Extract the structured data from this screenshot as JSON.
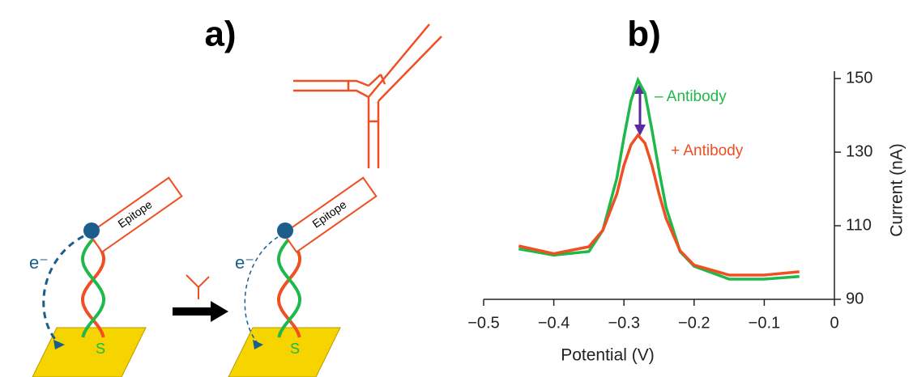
{
  "diagram": {
    "label": "a)",
    "epitope_labels": [
      "Epitope",
      "Epitope"
    ],
    "electron_labels": [
      "e⁻",
      "e⁻"
    ],
    "sulfur_labels": [
      "S",
      "S"
    ]
  },
  "chart_data": {
    "type": "line",
    "title": "b)",
    "x_label": "Potential (V)",
    "y_label": "Current (nA)",
    "x": [
      -0.45,
      -0.4,
      -0.35,
      -0.33,
      -0.31,
      -0.3,
      -0.29,
      -0.28,
      -0.27,
      -0.26,
      -0.25,
      -0.24,
      -0.22,
      -0.2,
      -0.15,
      -0.1,
      -0.05
    ],
    "series": [
      {
        "name": "– Antibody",
        "color": "#1fb84a",
        "values": [
          103.7,
          102,
          103,
          108.8,
          123,
          134,
          144,
          149.6,
          146,
          136,
          125,
          115,
          103,
          99,
          95.5,
          95.5,
          96.2
        ]
      },
      {
        "name": "+ Antibody",
        "color": "#f04e23",
        "values": [
          104.5,
          102.4,
          104.3,
          108.8,
          118.7,
          126.4,
          132,
          134.6,
          132.4,
          126.4,
          118.7,
          112,
          103.2,
          99.3,
          96.6,
          96.6,
          97.5
        ]
      }
    ],
    "xlim": [
      -0.5,
      0
    ],
    "ylim": [
      90,
      152
    ],
    "xticks": [
      {
        "value": -0.5,
        "label": "−0.5"
      },
      {
        "value": -0.4,
        "label": "−0.4"
      },
      {
        "value": -0.3,
        "label": "−0.3"
      },
      {
        "value": -0.2,
        "label": "−0.2"
      },
      {
        "value": -0.1,
        "label": "−0.1"
      },
      0
    ],
    "yticks": [
      90,
      110,
      130,
      150
    ]
  }
}
